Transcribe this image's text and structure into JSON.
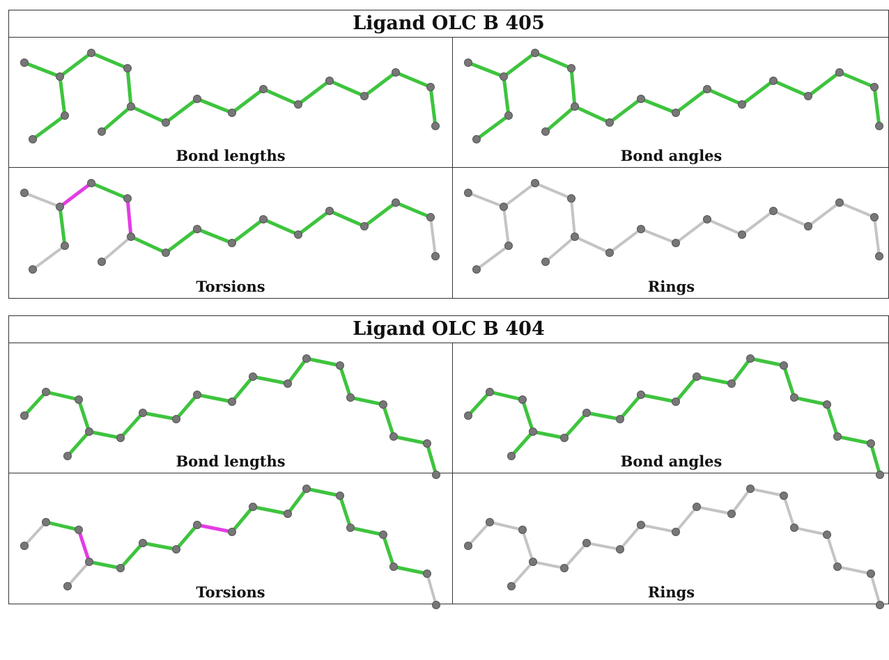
{
  "colors": {
    "ok": "#3ec43e",
    "flagged": "#e43ce4",
    "unchecked": "#c4c4c4",
    "atom": "#777777"
  },
  "blocks": [
    {
      "title": "Ligand OLC B 405",
      "molecule": "olc405",
      "panels": [
        {
          "caption": "Bond lengths",
          "mode": "all-ok",
          "flagged_bonds": []
        },
        {
          "caption": "Bond angles",
          "mode": "all-ok",
          "flagged_bonds": []
        },
        {
          "caption": "Torsions",
          "mode": "torsion",
          "flagged_bonds": [
            [
              1,
              2
            ],
            [
              3,
              4
            ]
          ]
        },
        {
          "caption": "Rings",
          "mode": "none",
          "flagged_bonds": []
        }
      ]
    },
    {
      "title": "Ligand OLC B 404",
      "molecule": "olc404",
      "panels": [
        {
          "caption": "Bond lengths",
          "mode": "all-ok",
          "flagged_bonds": []
        },
        {
          "caption": "Bond angles",
          "mode": "all-ok",
          "flagged_bonds": []
        },
        {
          "caption": "Torsions",
          "mode": "torsion",
          "flagged_bonds": [
            [
              2,
              3
            ],
            [
              8,
              9
            ]
          ]
        },
        {
          "caption": "Rings",
          "mode": "none",
          "flagged_bonds": []
        }
      ]
    }
  ]
}
